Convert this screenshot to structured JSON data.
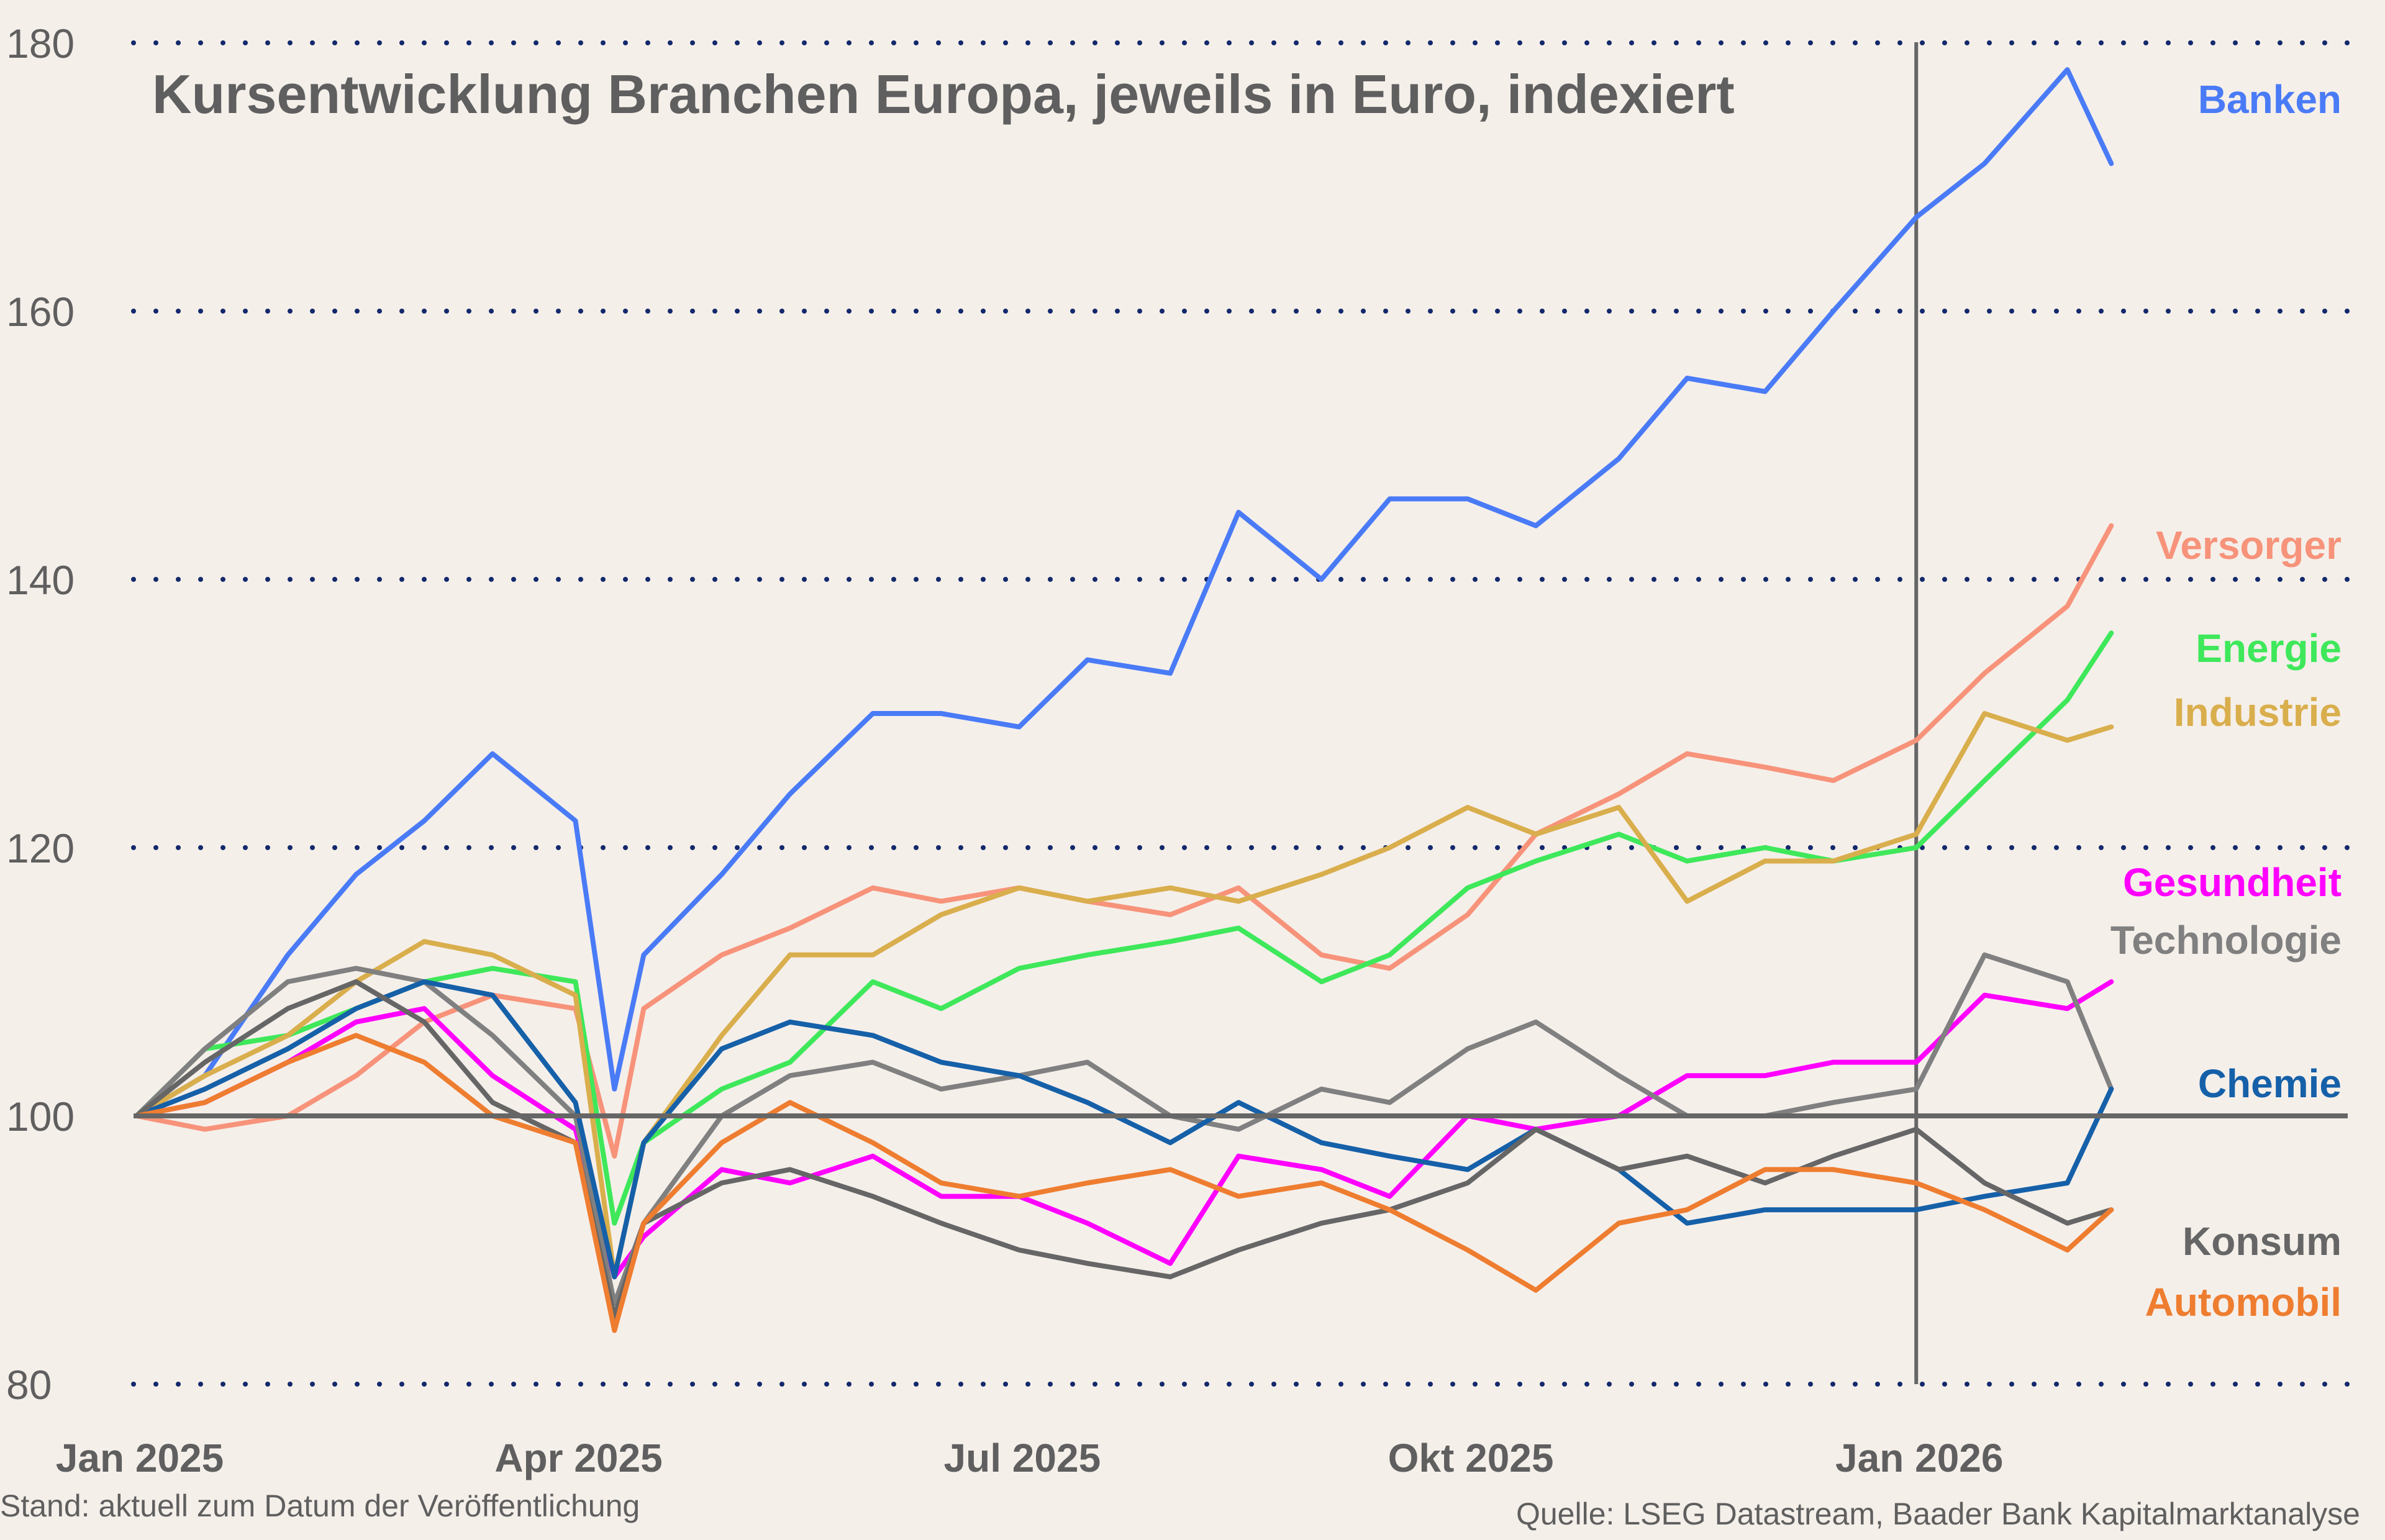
{
  "chart_data": {
    "type": "line",
    "title": "Kursentwicklung Branchen Europa, jeweils in Euro, indexiert",
    "xlabel": "",
    "ylabel": "",
    "ylim": [
      80,
      180
    ],
    "yticks": [
      80,
      100,
      120,
      140,
      160,
      180
    ],
    "xticks": [
      {
        "date": "2025-01-01",
        "label": "Jan 2025"
      },
      {
        "date": "2025-04-01",
        "label": "Apr 2025"
      },
      {
        "date": "2025-07-01",
        "label": "Jul 2025"
      },
      {
        "date": "2025-10-01",
        "label": "Okt 2025"
      },
      {
        "date": "2026-01-01",
        "label": "Jan 2026"
      }
    ],
    "grid": "horizontal dotted",
    "reference_line": 100,
    "vertical_marker": "2026-01-01",
    "legend": "right, labels at line ends",
    "x": [
      "2025-01-01",
      "2025-01-15",
      "2025-02-01",
      "2025-02-15",
      "2025-03-01",
      "2025-03-15",
      "2025-04-01",
      "2025-04-09",
      "2025-04-15",
      "2025-05-01",
      "2025-05-15",
      "2025-06-01",
      "2025-06-15",
      "2025-07-01",
      "2025-07-15",
      "2025-08-01",
      "2025-08-15",
      "2025-09-01",
      "2025-09-15",
      "2025-10-01",
      "2025-10-15",
      "2025-11-01",
      "2025-11-15",
      "2025-12-01",
      "2025-12-15",
      "2026-01-01",
      "2026-01-15",
      "2026-02-01",
      "2026-02-10"
    ],
    "series": [
      {
        "name": "Banken",
        "color": "#4a7bf7",
        "values": [
          100,
          103,
          112,
          118,
          122,
          127,
          122,
          102,
          112,
          118,
          124,
          130,
          130,
          129,
          134,
          133,
          145,
          140,
          146,
          146,
          144,
          149,
          155,
          154,
          160,
          167,
          171,
          178,
          171
        ]
      },
      {
        "name": "Versorger",
        "color": "#f7937a",
        "values": [
          100,
          99,
          100,
          103,
          107,
          109,
          108,
          97,
          108,
          112,
          114,
          117,
          116,
          117,
          116,
          115,
          117,
          112,
          111,
          115,
          121,
          124,
          127,
          126,
          125,
          128,
          133,
          138,
          144
        ]
      },
      {
        "name": "Energie",
        "color": "#3ee85a",
        "values": [
          100,
          105,
          106,
          108,
          110,
          111,
          110,
          92,
          98,
          102,
          104,
          110,
          108,
          111,
          112,
          113,
          114,
          110,
          112,
          117,
          119,
          121,
          119,
          120,
          119,
          120,
          125,
          131,
          136
        ]
      },
      {
        "name": "Industrie",
        "color": "#d9ae4c",
        "values": [
          100,
          103,
          106,
          110,
          113,
          112,
          109,
          88,
          98,
          106,
          112,
          112,
          115,
          117,
          116,
          117,
          116,
          118,
          120,
          123,
          121,
          123,
          116,
          119,
          119,
          121,
          130,
          128,
          129
        ]
      },
      {
        "name": "Gesundheit",
        "color": "#ff00ff",
        "values": [
          100,
          101,
          104,
          107,
          108,
          103,
          99,
          88,
          91,
          96,
          95,
          97,
          94,
          94,
          92,
          89,
          97,
          96,
          94,
          100,
          99,
          100,
          103,
          103,
          104,
          104,
          109,
          108,
          110
        ]
      },
      {
        "name": "Technologie",
        "color": "#808080",
        "values": [
          100,
          105,
          110,
          111,
          110,
          106,
          100,
          86,
          92,
          100,
          103,
          104,
          102,
          103,
          104,
          100,
          99,
          102,
          101,
          105,
          107,
          103,
          100,
          100,
          101,
          102,
          112,
          110,
          102
        ]
      },
      {
        "name": "Chemie",
        "color": "#1560a8",
        "values": [
          100,
          102,
          105,
          108,
          110,
          109,
          101,
          88,
          98,
          105,
          107,
          106,
          104,
          103,
          101,
          98,
          101,
          98,
          97,
          96,
          99,
          96,
          92,
          93,
          93,
          93,
          94,
          95,
          102
        ]
      },
      {
        "name": "Konsum",
        "color": "#666666",
        "values": [
          100,
          104,
          108,
          110,
          107,
          101,
          98,
          85,
          92,
          95,
          96,
          94,
          92,
          90,
          89,
          88,
          90,
          92,
          93,
          95,
          99,
          96,
          97,
          95,
          97,
          99,
          95,
          92,
          93
        ]
      },
      {
        "name": "Automobil",
        "color": "#ee7d30",
        "values": [
          100,
          101,
          104,
          106,
          104,
          100,
          98,
          84,
          92,
          98,
          101,
          98,
          95,
          94,
          95,
          96,
          94,
          95,
          93,
          90,
          87,
          92,
          93,
          96,
          96,
          95,
          93,
          90,
          93
        ]
      }
    ]
  },
  "footer": {
    "left": "Stand: aktuell zum Datum der Veröffentlichung",
    "right": "Quelle: LSEG Datastream, Baader Bank Kapitalmarktanalyse"
  },
  "colors": {
    "background": "#f5efea",
    "grid": "#13296b",
    "text": "#5f5f5f"
  }
}
